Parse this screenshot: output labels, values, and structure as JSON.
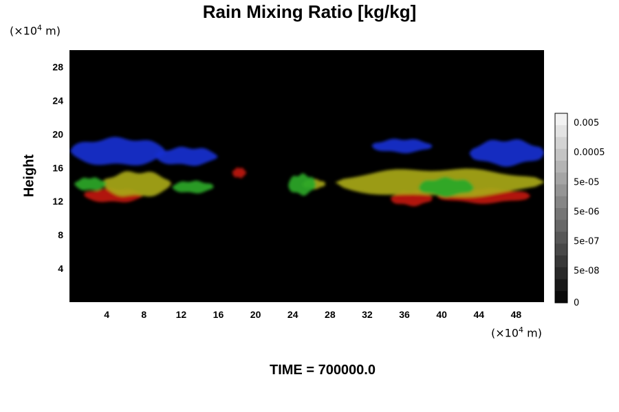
{
  "chart_data": {
    "type": "heatmap",
    "title": "Rain Mixing Ratio [kg/kg]",
    "ylabel": "Height",
    "xlabel": "",
    "x_unit": {
      "prefix": "(×10",
      "exp": "4",
      "suffix": " m)"
    },
    "y_unit": {
      "prefix": "(×10",
      "exp": "4",
      "suffix": " m)"
    },
    "xlim": [
      0,
      51
    ],
    "ylim": [
      0,
      30
    ],
    "x_ticks": [
      "4",
      "8",
      "12",
      "16",
      "20",
      "24",
      "28",
      "32",
      "36",
      "40",
      "44",
      "48"
    ],
    "x_tick_values": [
      4,
      8,
      12,
      16,
      20,
      24,
      28,
      32,
      36,
      40,
      44,
      48
    ],
    "y_ticks": [
      "4",
      "8",
      "12",
      "16",
      "20",
      "24",
      "28"
    ],
    "y_tick_values": [
      4,
      8,
      12,
      16,
      20,
      24,
      28
    ],
    "background": "#000000",
    "layers": [
      {
        "color": "#1a2fd0",
        "blobs": [
          {
            "x0": 0.0,
            "x1": 10.5,
            "ymin": 16.3,
            "ymax": 19.5
          },
          {
            "x0": 9.2,
            "x1": 16.0,
            "ymin": 16.3,
            "ymax": 18.4
          },
          {
            "x0": 32.5,
            "x1": 39.0,
            "ymin": 17.8,
            "ymax": 19.4
          },
          {
            "x0": 43.0,
            "x1": 51.0,
            "ymin": 16.3,
            "ymax": 19.3
          }
        ]
      },
      {
        "color": "#c01810",
        "blobs": [
          {
            "x0": 1.5,
            "x1": 8.0,
            "ymin": 11.9,
            "ymax": 13.5
          },
          {
            "x0": 17.5,
            "x1": 19.0,
            "ymin": 14.8,
            "ymax": 16.0
          },
          {
            "x0": 34.5,
            "x1": 39.0,
            "ymin": 11.5,
            "ymax": 13.2
          },
          {
            "x0": 39.5,
            "x1": 49.5,
            "ymin": 11.8,
            "ymax": 13.5
          }
        ]
      },
      {
        "color": "#a8a818",
        "blobs": [
          {
            "x0": 3.5,
            "x1": 11.0,
            "ymin": 12.6,
            "ymax": 15.5
          },
          {
            "x0": 28.5,
            "x1": 51.0,
            "ymin": 12.6,
            "ymax": 15.8
          },
          {
            "x0": 25.0,
            "x1": 27.5,
            "ymin": 13.5,
            "ymax": 14.6
          }
        ]
      },
      {
        "color": "#2aa828",
        "blobs": [
          {
            "x0": 0.5,
            "x1": 4.0,
            "ymin": 13.3,
            "ymax": 14.8
          },
          {
            "x0": 11.0,
            "x1": 15.5,
            "ymin": 13.0,
            "ymax": 14.4
          },
          {
            "x0": 23.5,
            "x1": 26.5,
            "ymin": 12.8,
            "ymax": 15.2
          },
          {
            "x0": 37.5,
            "x1": 43.5,
            "ymin": 12.6,
            "ymax": 14.8
          }
        ]
      }
    ],
    "colorbar": {
      "levels": 16,
      "labels": [
        "0.005",
        "0.0005",
        "5e-05",
        "5e-06",
        "5e-07",
        "5e-08",
        "0"
      ]
    }
  },
  "footer": {
    "time_label": "TIME = 700000.0"
  }
}
